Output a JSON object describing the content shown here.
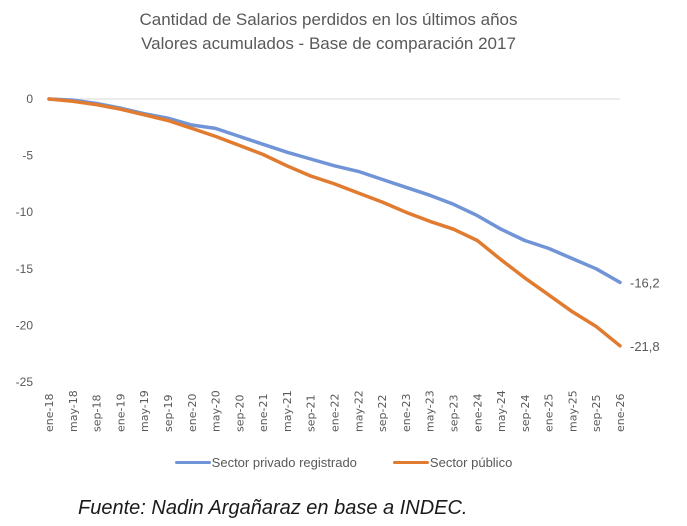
{
  "chart_data": {
    "type": "line",
    "title": "Cantidad de Salarios perdidos en los últimos años",
    "subtitle": "Valores acumulados - Base de comparación 2017",
    "xlabel": "",
    "ylabel": "",
    "ylim": [
      -25,
      0
    ],
    "yticks": [
      "0",
      "-5",
      "-10",
      "-15",
      "-20",
      "-25"
    ],
    "ytick_values": [
      0,
      -5,
      -10,
      -15,
      -20,
      -25
    ],
    "grid": "zero line only",
    "legend_position": "bottom",
    "categories": [
      "ene-18",
      "may-18",
      "sep-18",
      "ene-19",
      "may-19",
      "sep-19",
      "ene-20",
      "may-20",
      "sep-20",
      "ene-21",
      "may-21",
      "sep-21",
      "ene-22",
      "may-22",
      "sep-22",
      "ene-23",
      "may-23",
      "sep-23",
      "ene-24",
      "may-24",
      "sep-24",
      "ene-25",
      "may-25",
      "sep-25",
      "ene-26"
    ],
    "series": [
      {
        "name": "Sector privado registrado",
        "color": "#7094d6",
        "values": [
          0,
          -0.1,
          -0.4,
          -0.8,
          -1.3,
          -1.7,
          -2.3,
          -2.6,
          -3.3,
          -4.0,
          -4.7,
          -5.3,
          -5.9,
          -6.4,
          -7.1,
          -7.8,
          -8.5,
          -9.3,
          -10.3,
          -11.5,
          -12.5,
          -13.2,
          -14.1,
          -15.0,
          -16.2
        ],
        "end_label": "-16,2"
      },
      {
        "name": "Sector público",
        "color": "#e07b30",
        "values": [
          0,
          -0.2,
          -0.5,
          -0.9,
          -1.4,
          -1.9,
          -2.6,
          -3.3,
          -4.1,
          -4.9,
          -5.9,
          -6.8,
          -7.5,
          -8.3,
          -9.1,
          -10.0,
          -10.8,
          -11.5,
          -12.5,
          -14.2,
          -15.8,
          -17.3,
          -18.8,
          -20.1,
          -21.8
        ],
        "end_label": "-21,8"
      }
    ]
  },
  "source": "Fuente: Nadin Argañaraz en base a INDEC."
}
